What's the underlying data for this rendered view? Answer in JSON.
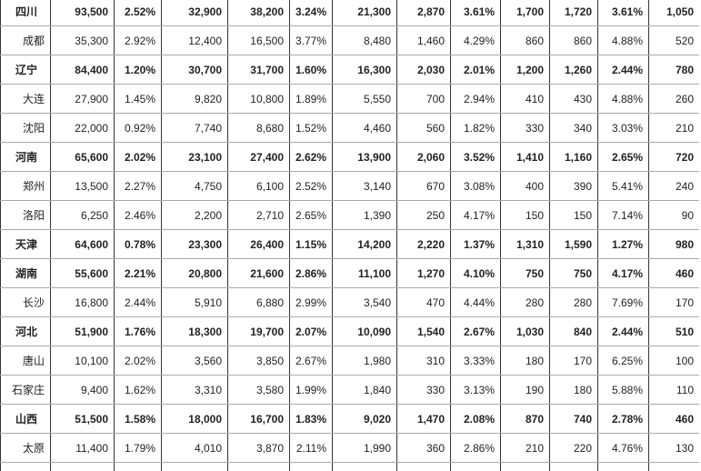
{
  "table": {
    "rows": [
      {
        "bold": true,
        "cells": [
          "四川",
          "93,500",
          "2.52%",
          "32,900",
          "38,200",
          "3.24%",
          "21,300",
          "2,870",
          "3.61%",
          "1,700",
          "1,720",
          "3.61%",
          "1,050"
        ]
      },
      {
        "bold": false,
        "cells": [
          "成都",
          "35,300",
          "2.92%",
          "12,400",
          "16,500",
          "3.77%",
          "8,480",
          "1,460",
          "4.29%",
          "860",
          "860",
          "4.88%",
          "520"
        ]
      },
      {
        "bold": true,
        "cells": [
          "辽宁",
          "84,400",
          "1.20%",
          "30,700",
          "31,700",
          "1.60%",
          "16,300",
          "2,030",
          "2.01%",
          "1,200",
          "1,260",
          "2.44%",
          "780"
        ]
      },
      {
        "bold": false,
        "cells": [
          "大连",
          "27,900",
          "1.45%",
          "9,820",
          "10,800",
          "1.89%",
          "5,550",
          "700",
          "2.94%",
          "410",
          "430",
          "4.88%",
          "260"
        ]
      },
      {
        "bold": false,
        "cells": [
          "沈阳",
          "22,000",
          "0.92%",
          "7,740",
          "8,680",
          "1.52%",
          "4,460",
          "560",
          "1.82%",
          "330",
          "340",
          "3.03%",
          "210"
        ]
      },
      {
        "bold": true,
        "cells": [
          "河南",
          "65,600",
          "2.02%",
          "23,100",
          "27,400",
          "2.62%",
          "13,900",
          "2,060",
          "3.52%",
          "1,410",
          "1,160",
          "2.65%",
          "720"
        ]
      },
      {
        "bold": false,
        "cells": [
          "郑州",
          "13,500",
          "2.27%",
          "4,750",
          "6,100",
          "2.52%",
          "3,140",
          "670",
          "3.08%",
          "400",
          "390",
          "5.41%",
          "240"
        ]
      },
      {
        "bold": false,
        "cells": [
          "洛阳",
          "6,250",
          "2.46%",
          "2,200",
          "2,710",
          "2.65%",
          "1,390",
          "250",
          "4.17%",
          "150",
          "150",
          "7.14%",
          "90"
        ]
      },
      {
        "bold": true,
        "cells": [
          "天津",
          "64,600",
          "0.78%",
          "23,300",
          "26,400",
          "1.15%",
          "14,200",
          "2,220",
          "1.37%",
          "1,310",
          "1,590",
          "1.27%",
          "980"
        ]
      },
      {
        "bold": true,
        "cells": [
          "湖南",
          "55,600",
          "2.21%",
          "20,800",
          "21,600",
          "2.86%",
          "11,100",
          "1,270",
          "4.10%",
          "750",
          "750",
          "4.17%",
          "460"
        ]
      },
      {
        "bold": false,
        "cells": [
          "长沙",
          "16,800",
          "2.44%",
          "5,910",
          "6,880",
          "2.99%",
          "3,540",
          "470",
          "4.44%",
          "280",
          "280",
          "7.69%",
          "170"
        ]
      },
      {
        "bold": true,
        "cells": [
          "河北",
          "51,900",
          "1.76%",
          "18,300",
          "19,700",
          "2.07%",
          "10,090",
          "1,540",
          "2.67%",
          "1,030",
          "840",
          "2.44%",
          "510"
        ]
      },
      {
        "bold": false,
        "cells": [
          "唐山",
          "10,100",
          "2.02%",
          "3,560",
          "3,850",
          "2.67%",
          "1,980",
          "310",
          "3.33%",
          "180",
          "170",
          "6.25%",
          "100"
        ]
      },
      {
        "bold": false,
        "cells": [
          "石家庄",
          "9,400",
          "1.62%",
          "3,310",
          "3,580",
          "1.99%",
          "1,840",
          "330",
          "3.13%",
          "190",
          "180",
          "5.88%",
          "110"
        ]
      },
      {
        "bold": true,
        "cells": [
          "山西",
          "51,500",
          "1.58%",
          "18,000",
          "16,700",
          "1.83%",
          "9,020",
          "1,470",
          "2.08%",
          "870",
          "740",
          "2.78%",
          "460"
        ]
      },
      {
        "bold": false,
        "cells": [
          "太原",
          "11,400",
          "1.79%",
          "4,010",
          "3,870",
          "2.11%",
          "1,990",
          "360",
          "2.86%",
          "210",
          "220",
          "4.76%",
          "130"
        ]
      }
    ]
  }
}
